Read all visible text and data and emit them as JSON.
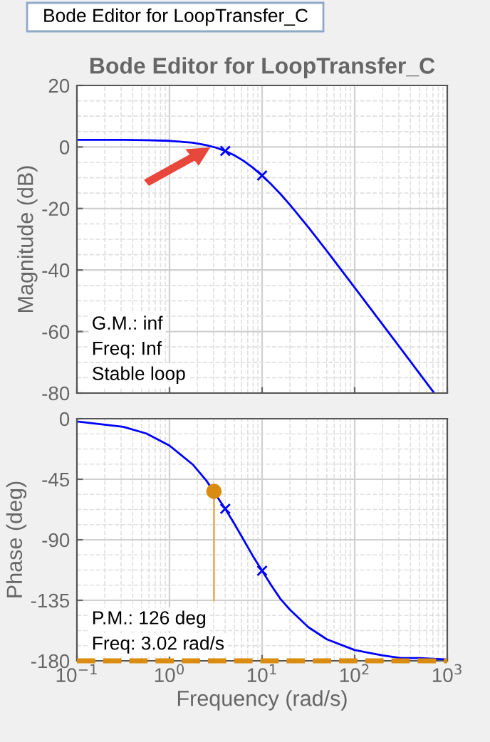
{
  "chart_data": [
    {
      "type": "line",
      "title": "Bode Editor for LoopTransfer_C",
      "ylabel": "Magnitude (dB)",
      "annotations": [
        "Bode Editor for LoopTransfer_C",
        "G.M.: inf",
        "Freq: Inf",
        "Stable loop"
      ],
      "xlim": [
        0.1,
        1000
      ],
      "xticks": [
        {
          "value": 0.1,
          "label": null
        },
        {
          "value": 1,
          "label": null
        },
        {
          "value": 10,
          "label": null
        },
        {
          "value": 100,
          "label": null
        },
        {
          "value": 1000,
          "label": null
        }
      ],
      "ylim": [
        -80,
        20
      ],
      "yticks": [
        -80,
        -60,
        -40,
        -20,
        0,
        20
      ],
      "log": "x",
      "grid": true,
      "tick_labels": "y",
      "series": [
        {
          "color": "#0000ff",
          "x": [
            0.1,
            0.316,
            0.562,
            1,
            1.78,
            2.5,
            3.16,
            4,
            5,
            6.31,
            7.94,
            10,
            12.6,
            15.8,
            20,
            31.6,
            50,
            100,
            200,
            316,
            500,
            723
          ],
          "values": [
            2.3,
            2.3,
            2.2,
            2.0,
            1.4,
            0.6,
            -0.2,
            -1.3,
            -2.7,
            -4.5,
            -6.7,
            -9.3,
            -12.2,
            -15.3,
            -18.8,
            -26.1,
            -33.8,
            -45.7,
            -57.7,
            -65.6,
            -73.6,
            -80
          ]
        },
        {
          "type": "scatter",
          "color": "#0000ff",
          "marker": "cross",
          "x": [
            4,
            10
          ],
          "values": [
            -1.3,
            -9.3
          ]
        }
      ]
    },
    {
      "type": "line",
      "xlabel": "Frequency (rad/s)",
      "ylabel": "Phase (deg)",
      "annotations": [
        "P.M.: 126 deg",
        "Freq: 3.02 rad/s"
      ],
      "xlim": [
        0.1,
        1000
      ],
      "xticks": [
        {
          "value": 0.1,
          "label": "10$^{−1}$"
        },
        {
          "value": 1,
          "label": "10$^{0}$"
        },
        {
          "value": 10,
          "label": "10$^{1}$"
        },
        {
          "value": 100,
          "label": "10$^{2}$"
        },
        {
          "value": 1000,
          "label": "10$^{3}$"
        }
      ],
      "ylim": [
        -180,
        0
      ],
      "yticks": [
        -180,
        -135,
        -90,
        -45,
        0
      ],
      "log": "x",
      "grid": true,
      "ref_lines": [
        {
          "axis": "y",
          "value": -180,
          "color": "#d98c10",
          "line_style": "dashed"
        }
      ],
      "series": [
        {
          "color": "#0000ff",
          "x": [
            0.1,
            0.316,
            0.562,
            1,
            1.78,
            2.5,
            4,
            5,
            6.31,
            7.94,
            10,
            12.6,
            15.8,
            20,
            31.6,
            50,
            100,
            200,
            316,
            500,
            1000
          ],
          "values": [
            -2,
            -6,
            -11,
            -20,
            -34,
            -46,
            -67,
            -78,
            -90,
            -102,
            -113,
            -124,
            -134,
            -142,
            -155,
            -164,
            -172,
            -176,
            -178,
            -178,
            -179
          ]
        },
        {
          "type": "scatter",
          "color": "#0000ff",
          "marker": "cross",
          "x": [
            4,
            10
          ],
          "values": [
            -67,
            -113
          ]
        },
        {
          "color": "#e8b060",
          "x": [
            3.02,
            3.02
          ],
          "values": [
            -54,
            -135
          ]
        },
        {
          "type": "scatter",
          "color": "#d98c10",
          "marker": "circle",
          "x": [
            3.02
          ],
          "values": [
            -54
          ]
        }
      ]
    }
  ]
}
